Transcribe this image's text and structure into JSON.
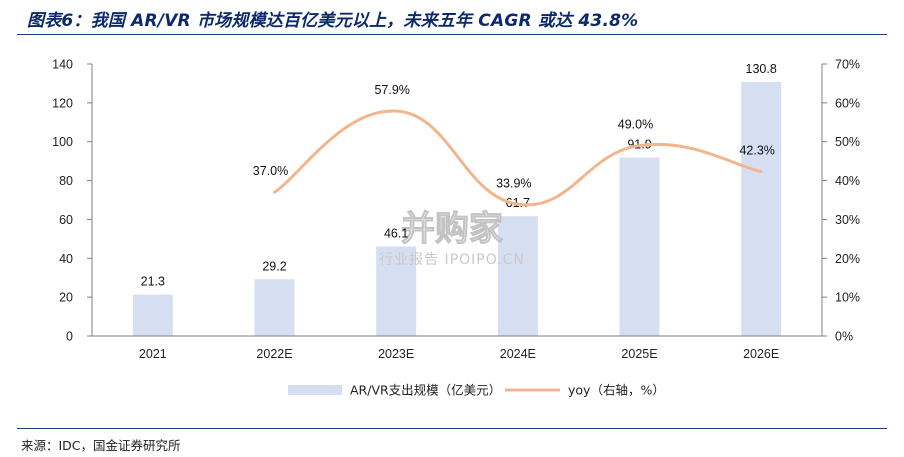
{
  "title": "图表6：我国 AR/VR 市场规模达百亿美元以上，未来五年 CAGR 或达 43.8%",
  "source": "来源：IDC，国金证券研究所",
  "watermark": {
    "main": "并购家",
    "sub": "行业报告 IPOIPO.CN"
  },
  "colors": {
    "bar": "#d6dff2",
    "line": "#f2b58d",
    "title": "#0b2a6b",
    "rule": "#1f3f7f"
  },
  "chart_data": {
    "type": "bar+line",
    "categories": [
      "2021",
      "2022E",
      "2023E",
      "2024E",
      "2025E",
      "2026E"
    ],
    "series": [
      {
        "name": "AR/VR支出规模（亿美元）",
        "type": "bar",
        "axis": "left",
        "values": [
          21.3,
          29.2,
          46.1,
          61.7,
          91.9,
          130.8
        ],
        "labels": [
          "21.3",
          "29.2",
          "46.1",
          "61.7",
          "91.9",
          "130.8"
        ]
      },
      {
        "name": "yoy（右轴，%）",
        "type": "line",
        "axis": "right",
        "x": [
          "2022E",
          "2023E",
          "2024E",
          "2025E",
          "2026E"
        ],
        "values": [
          37.0,
          57.9,
          33.9,
          49.0,
          42.3
        ],
        "labels": [
          "37.0%",
          "57.9%",
          "33.9%",
          "49.0%",
          "42.3%"
        ]
      }
    ],
    "y_left": {
      "min": 0,
      "max": 140,
      "ticks": [
        "0",
        "20",
        "40",
        "60",
        "80",
        "100",
        "120",
        "140"
      ]
    },
    "y_right": {
      "min": 0,
      "max": 70,
      "ticks": [
        "0%",
        "10%",
        "20%",
        "30%",
        "40%",
        "50%",
        "60%",
        "70%"
      ]
    },
    "grid": false,
    "legend": "bottom"
  }
}
